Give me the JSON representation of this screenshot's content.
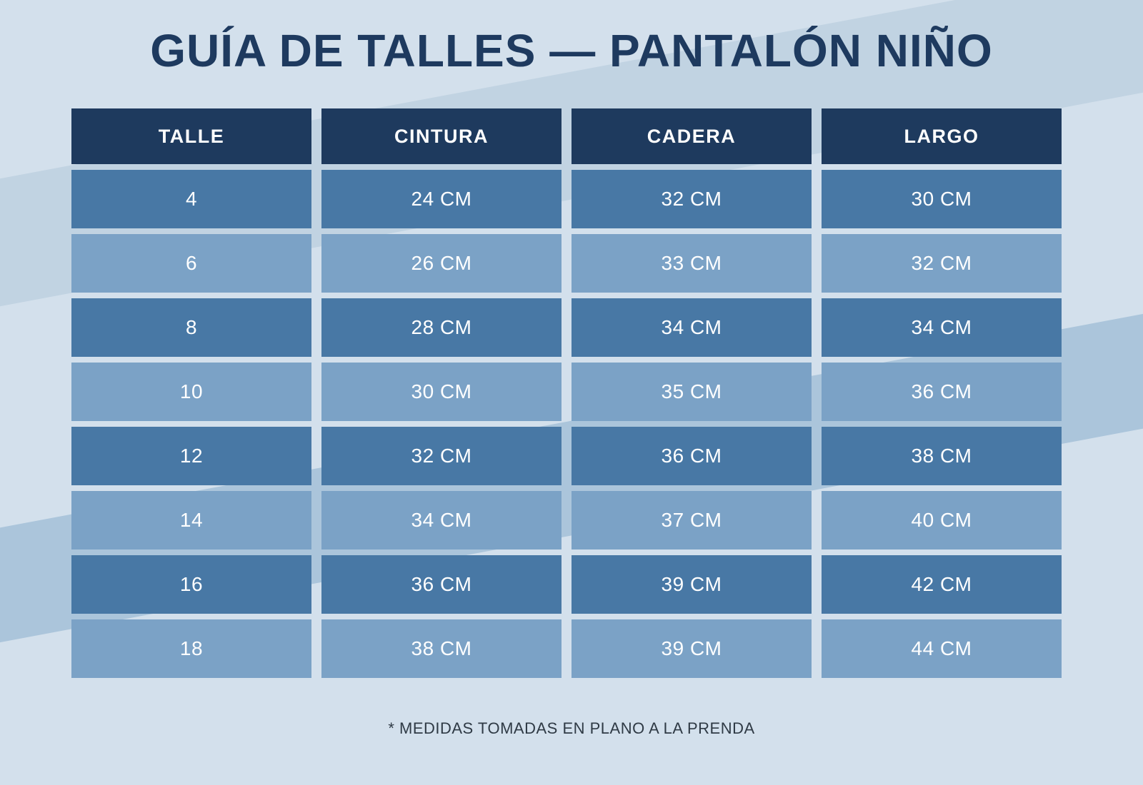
{
  "page": {
    "title": "GUÍA DE TALLES — PANTALÓN NIÑO",
    "footnote": "* MEDIDAS TOMADAS EN PLANO A LA PRENDA"
  },
  "chart_data": {
    "type": "table",
    "title": "GUÍA DE TALLES — PANTALÓN NIÑO",
    "columns": [
      "TALLE",
      "CINTURA",
      "CADERA",
      "LARGO"
    ],
    "rows": [
      [
        "4",
        "24 CM",
        "32 CM",
        "30 CM"
      ],
      [
        "6",
        "26 CM",
        "33 CM",
        "32 CM"
      ],
      [
        "8",
        "28 CM",
        "34 CM",
        "34 CM"
      ],
      [
        "10",
        "30 CM",
        "35 CM",
        "36 CM"
      ],
      [
        "12",
        "32 CM",
        "36 CM",
        "38 CM"
      ],
      [
        "14",
        "34 CM",
        "37 CM",
        "40 CM"
      ],
      [
        "16",
        "36 CM",
        "39 CM",
        "42 CM"
      ],
      [
        "18",
        "38 CM",
        "39 CM",
        "44 CM"
      ]
    ],
    "row_style_pattern": [
      "dark",
      "light"
    ],
    "footnote": "* MEDIDAS TOMADAS EN PLANO A LA PRENDA"
  },
  "colors": {
    "background": "#d3e0ec",
    "stripe_light": "#c1d3e2",
    "stripe_medium": "#abc5db",
    "header_bg": "#1e3a5e",
    "row_dark": "#4878a5",
    "row_light": "#7ba2c6",
    "title_text": "#1e3a5f",
    "cell_text": "#ffffff",
    "footnote_text": "#2f3a45"
  }
}
